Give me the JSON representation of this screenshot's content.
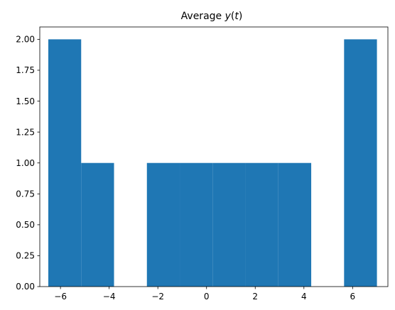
{
  "chart_data": {
    "type": "bar",
    "title": "Average y(t)",
    "title_parts": {
      "prefix": "Average ",
      "variable": "y",
      "open": "(",
      "arg": "t",
      "close": ")"
    },
    "xlabel": "",
    "ylabel": "",
    "bar_color": "#1f77b4",
    "xlim": [
      -6.85,
      7.45
    ],
    "ylim": [
      0,
      2.1
    ],
    "bins": [
      {
        "start": -6.5,
        "end": -5.15,
        "value": 2
      },
      {
        "start": -5.15,
        "end": -3.8,
        "value": 1
      },
      {
        "start": -3.8,
        "end": -2.45,
        "value": 0
      },
      {
        "start": -2.45,
        "end": -1.1,
        "value": 1
      },
      {
        "start": -1.1,
        "end": 0.25,
        "value": 1
      },
      {
        "start": 0.25,
        "end": 1.6,
        "value": 1
      },
      {
        "start": 1.6,
        "end": 2.95,
        "value": 1
      },
      {
        "start": 2.95,
        "end": 4.3,
        "value": 1
      },
      {
        "start": 4.3,
        "end": 5.65,
        "value": 0
      },
      {
        "start": 5.65,
        "end": 7.0,
        "value": 2
      }
    ],
    "x_ticks": [
      {
        "value": -6,
        "label": "−6"
      },
      {
        "value": -4,
        "label": "−4"
      },
      {
        "value": -2,
        "label": "−2"
      },
      {
        "value": 0,
        "label": "0"
      },
      {
        "value": 2,
        "label": "2"
      },
      {
        "value": 4,
        "label": "4"
      },
      {
        "value": 6,
        "label": "6"
      }
    ],
    "y_ticks": [
      {
        "value": 0.0,
        "label": "0.00"
      },
      {
        "value": 0.25,
        "label": "0.25"
      },
      {
        "value": 0.5,
        "label": "0.50"
      },
      {
        "value": 0.75,
        "label": "0.75"
      },
      {
        "value": 1.0,
        "label": "1.00"
      },
      {
        "value": 1.25,
        "label": "1.25"
      },
      {
        "value": 1.5,
        "label": "1.50"
      },
      {
        "value": 1.75,
        "label": "1.75"
      },
      {
        "value": 2.0,
        "label": "2.00"
      }
    ],
    "grid": false,
    "legend": "none"
  }
}
